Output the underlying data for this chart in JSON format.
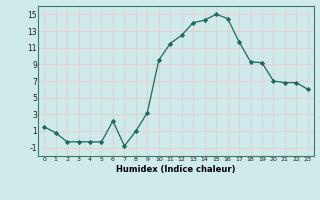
{
  "x": [
    0,
    1,
    2,
    3,
    4,
    5,
    6,
    7,
    8,
    9,
    10,
    11,
    12,
    13,
    14,
    15,
    16,
    17,
    18,
    19,
    20,
    21,
    22,
    23
  ],
  "y": [
    1.5,
    0.8,
    -0.3,
    -0.3,
    -0.3,
    -0.3,
    2.2,
    -0.8,
    1.0,
    3.2,
    9.5,
    11.5,
    12.5,
    14.0,
    14.3,
    15.0,
    14.5,
    11.7,
    9.3,
    9.2,
    7.0,
    6.8,
    6.8,
    6.0
  ],
  "line_color": "#1a6b5a",
  "marker": "D",
  "marker_size": 2.2,
  "xlabel": "Humidex (Indice chaleur)",
  "xlim": [
    -0.5,
    23.5
  ],
  "ylim": [
    -2,
    16
  ],
  "yticks": [
    -1,
    1,
    3,
    5,
    7,
    9,
    11,
    13,
    15
  ],
  "xticks": [
    0,
    1,
    2,
    3,
    4,
    5,
    6,
    7,
    8,
    9,
    10,
    11,
    12,
    13,
    14,
    15,
    16,
    17,
    18,
    19,
    20,
    21,
    22,
    23
  ],
  "xtick_labels": [
    "0",
    "1",
    "2",
    "3",
    "4",
    "5",
    "6",
    "7",
    "8",
    "9",
    "10",
    "11",
    "12",
    "13",
    "14",
    "15",
    "16",
    "17",
    "18",
    "19",
    "20",
    "21",
    "22",
    "23"
  ],
  "bg_color": "#ceeaea",
  "grid_color": "#e8c8c8",
  "plot_bg_color": "#ceeaea"
}
